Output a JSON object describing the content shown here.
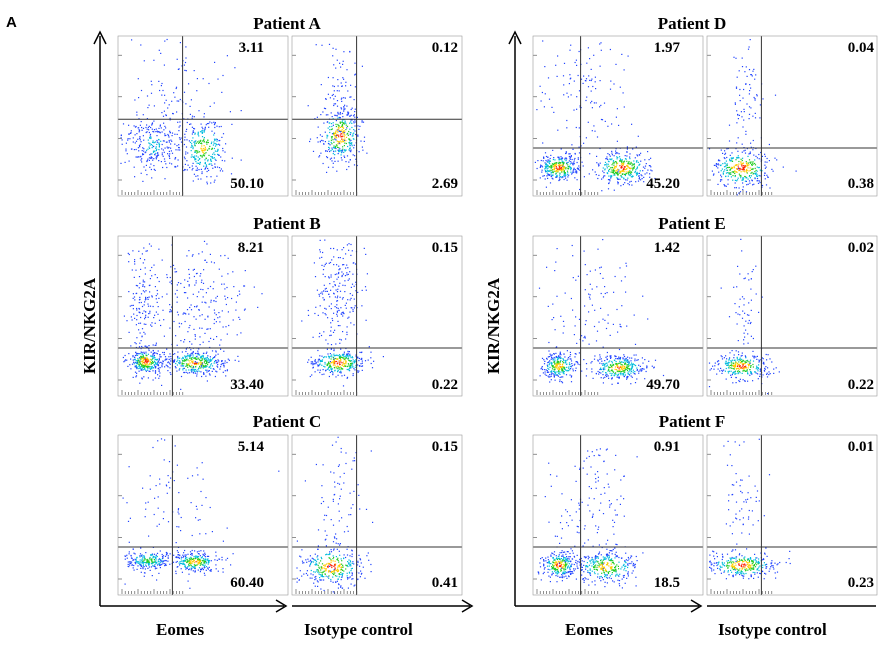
{
  "panel_letter": "A",
  "chart_data": {
    "type": "scatter",
    "description_type": "flow-cytometry-density-plots",
    "ylabel": "KIR/NKG2A",
    "xlabels": [
      "Eomes",
      "Isotype control"
    ],
    "patients": [
      {
        "title": "Patient A",
        "eomes": {
          "upper_right": "3.11",
          "lower_right": "50.10"
        },
        "isotype": {
          "upper_right": "0.12",
          "lower_right": "2.69"
        }
      },
      {
        "title": "Patient B",
        "eomes": {
          "upper_right": "8.21",
          "lower_right": "33.40"
        },
        "isotype": {
          "upper_right": "0.15",
          "lower_right": "0.22"
        }
      },
      {
        "title": "Patient C",
        "eomes": {
          "upper_right": "5.14",
          "lower_right": "60.40"
        },
        "isotype": {
          "upper_right": "0.15",
          "lower_right": "0.41"
        }
      },
      {
        "title": "Patient D",
        "eomes": {
          "upper_right": "1.97",
          "lower_right": "45.20"
        },
        "isotype": {
          "upper_right": "0.04",
          "lower_right": "0.38"
        }
      },
      {
        "title": "Patient E",
        "eomes": {
          "upper_right": "1.42",
          "lower_right": "49.70"
        },
        "isotype": {
          "upper_right": "0.02",
          "lower_right": "0.22"
        }
      },
      {
        "title": "Patient F",
        "eomes": {
          "upper_right": "0.91",
          "lower_right": "18.5"
        },
        "isotype": {
          "upper_right": "0.01",
          "lower_right": "0.23"
        }
      }
    ]
  }
}
